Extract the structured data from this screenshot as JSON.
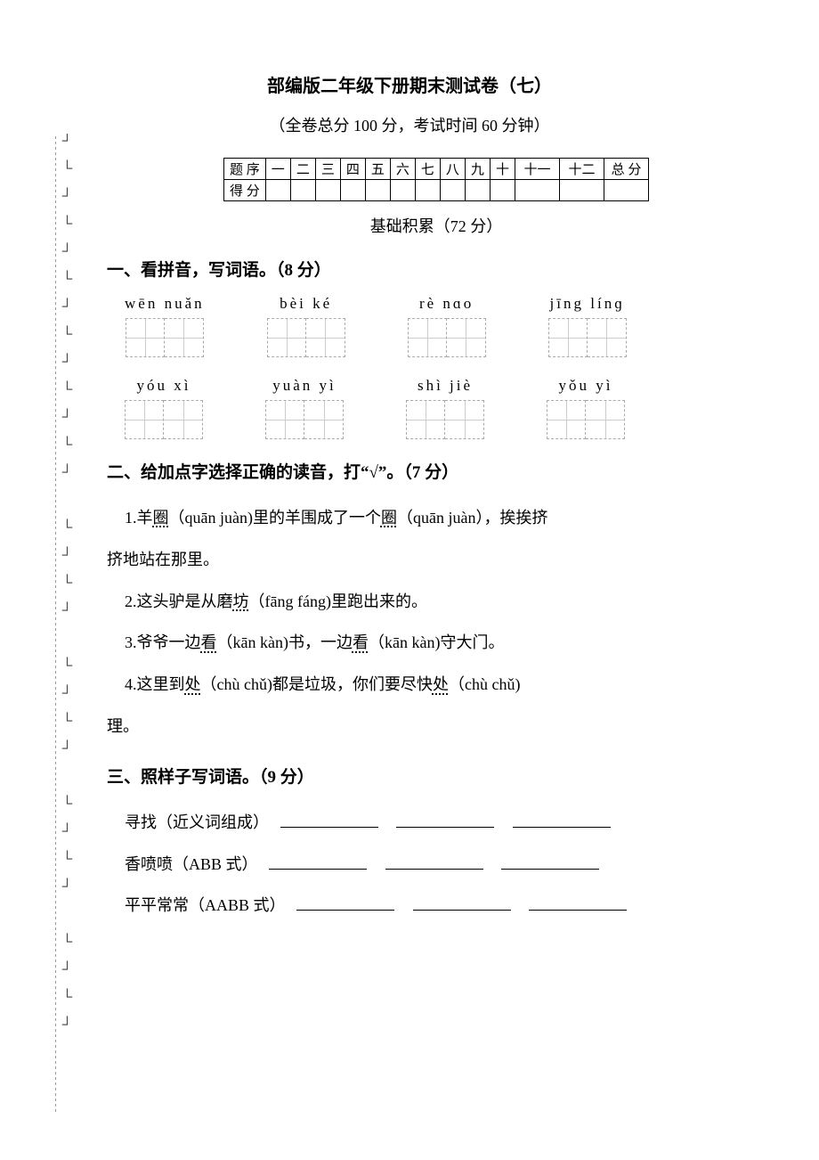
{
  "title": "部编版二年级下册期末测试卷（七）",
  "subtitle": "（全卷总分 100 分，考试时间 60 分钟）",
  "scoreTable": {
    "row1Label": "题 序",
    "row2Label": "得 分",
    "cols": [
      "一",
      "二",
      "三",
      "四",
      "五",
      "六",
      "七",
      "八",
      "九",
      "十",
      "十一",
      "十二"
    ],
    "totalLabel": "总 分"
  },
  "sectionBanner": "基础积累（72 分）",
  "q1": {
    "heading": "一、看拼音，写词语。（8 分）",
    "row1": [
      {
        "pinyin": "wēn   nuǎn",
        "cells": 2
      },
      {
        "pinyin": "bèi     ké",
        "cells": 2
      },
      {
        "pinyin": "rè     nɑo",
        "cells": 2
      },
      {
        "pinyin": "jīng    línɡ",
        "cells": 2
      }
    ],
    "row2": [
      {
        "pinyin": "yóu     xì",
        "cells": 2
      },
      {
        "pinyin": "yuàn    yì",
        "cells": 2
      },
      {
        "pinyin": "shì     jiè",
        "cells": 2
      },
      {
        "pinyin": "yǒu     yì",
        "cells": 2
      }
    ]
  },
  "q2": {
    "heading": "二、给加点字选择正确的读音，打“√”。（7 分）",
    "line1a": "1.羊",
    "line1b": "圈",
    "line1c": "（quān juàn)里的羊围成了一个",
    "line1d": "圈",
    "line1e": "（quān juàn），挨挨挤",
    "line1_cont": "挤地站在那里。",
    "line2a": "2.这头驴是从磨",
    "line2b": "坊",
    "line2c": "（fāng  fáng)里跑出来的。",
    "line3a": "3.爷爷一边",
    "line3b": "看",
    "line3c": "（kān   kàn)书，一边",
    "line3d": "看",
    "line3e": "（kān   kàn)守大门。",
    "line4a": "4.这里到",
    "line4b": "处",
    "line4c": "（chù   chǔ)都是垃圾，你们要尽快",
    "line4d": "处",
    "line4e": "（chù   chǔ)",
    "line4_cont": "理。"
  },
  "q3": {
    "heading": "三、照样子写词语。（9 分）",
    "line1": "寻找（近义词组成）",
    "line2": "香喷喷（ABB 式）",
    "line3": "平平常常（AABB 式）"
  }
}
